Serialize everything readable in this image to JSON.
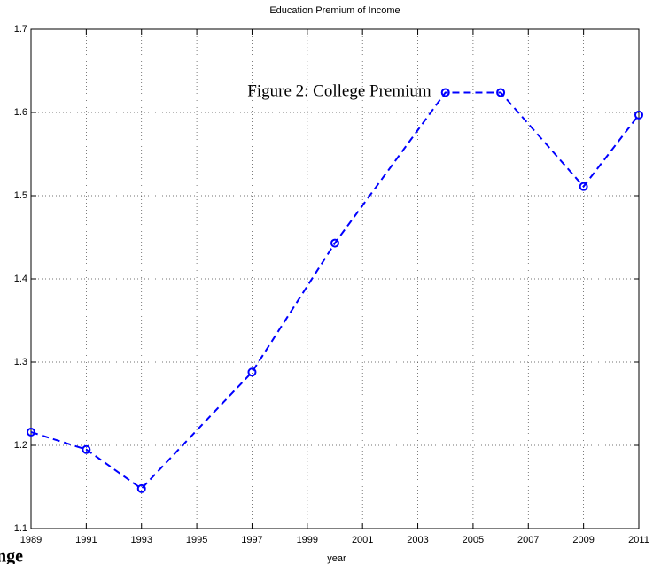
{
  "chart_data": {
    "type": "line",
    "title": "Education Premium of Income",
    "x_label": "year",
    "x": [
      1989,
      1991,
      1993,
      1997,
      2000,
      2004,
      2006,
      2009,
      2011
    ],
    "series": [
      {
        "name": "College Premium",
        "color": "#0000ff",
        "values": [
          1.216,
          1.195,
          1.148,
          1.288,
          1.443,
          1.624,
          1.624,
          1.511,
          1.597
        ]
      }
    ],
    "xlim": [
      1989,
      2011
    ],
    "xticks": [
      1989,
      1991,
      1993,
      1995,
      1997,
      1999,
      2001,
      2003,
      2005,
      2007,
      2009,
      2011
    ],
    "ylim": [
      1.1,
      1.7
    ],
    "yticks": [
      1.1,
      1.2,
      1.3,
      1.4,
      1.5,
      1.6,
      1.7
    ],
    "grid": true,
    "annotations": [
      "Figure 2: College Premium",
      "nge"
    ]
  }
}
